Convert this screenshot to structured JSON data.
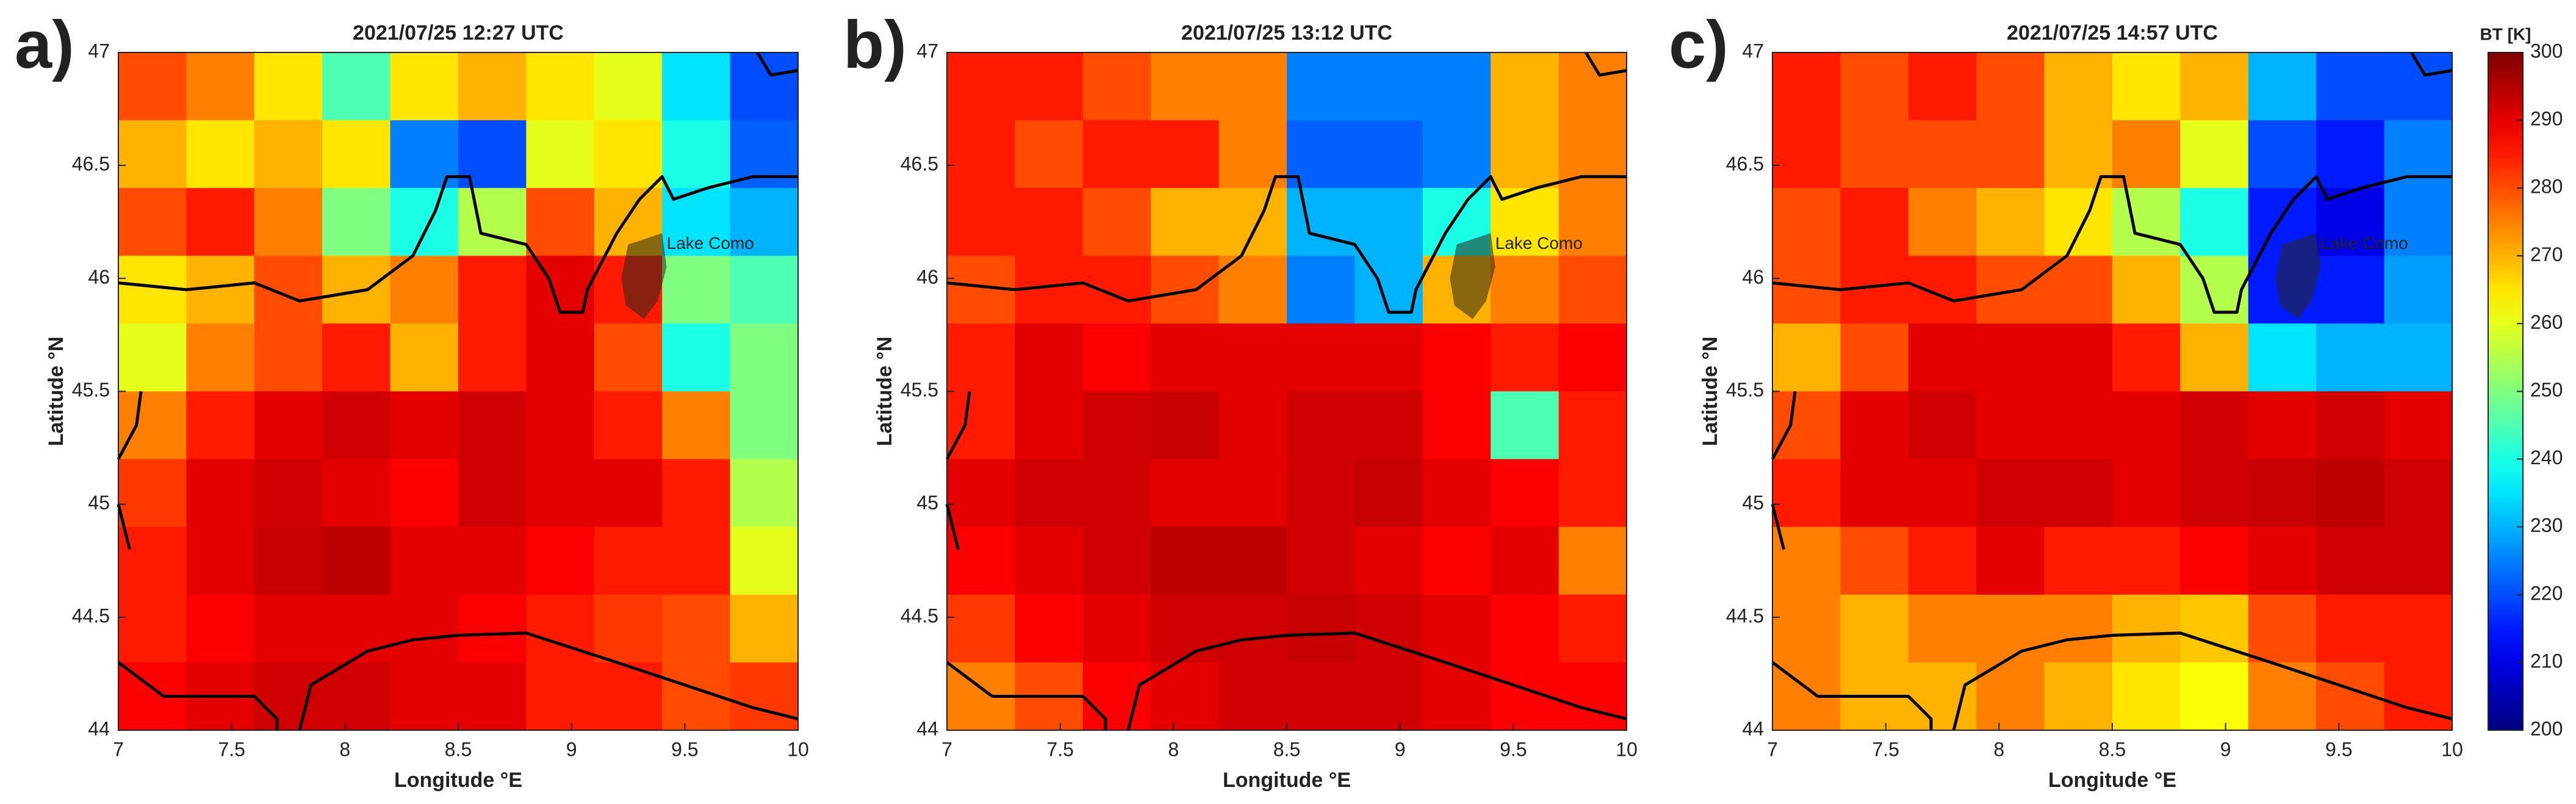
{
  "chart_data": [
    {
      "type": "heatmap",
      "label": "a)",
      "title": "2021/07/25 12:27 UTC",
      "xlabel": "Longitude °E",
      "ylabel": "Latitude °N",
      "xlim": [
        7,
        10
      ],
      "ylim": [
        44,
        47
      ],
      "xticks": [
        7,
        7.5,
        8,
        8.5,
        9,
        9.5,
        10
      ],
      "yticks": [
        44,
        44.5,
        45,
        45.5,
        46,
        46.5,
        47
      ],
      "colormap": "jet",
      "clim": [
        200,
        300
      ],
      "annotations": [
        {
          "text": "Lake Como",
          "x": 9.42,
          "y": 46.15
        }
      ],
      "z": [
        [
          280,
          275,
          265,
          245,
          265,
          270,
          265,
          260,
          235,
          220
        ],
        [
          270,
          265,
          270,
          265,
          225,
          220,
          260,
          265,
          240,
          222
        ],
        [
          280,
          285,
          275,
          250,
          240,
          255,
          280,
          270,
          235,
          230
        ],
        [
          265,
          270,
          280,
          270,
          275,
          285,
          290,
          285,
          250,
          245
        ],
        [
          260,
          275,
          280,
          285,
          270,
          285,
          290,
          280,
          240,
          250
        ],
        [
          275,
          285,
          290,
          292,
          290,
          292,
          290,
          285,
          275,
          250
        ],
        [
          282,
          290,
          292,
          290,
          288,
          292,
          290,
          290,
          285,
          255
        ],
        [
          285,
          290,
          293,
          294,
          290,
          290,
          288,
          285,
          285,
          260
        ],
        [
          285,
          288,
          290,
          290,
          290,
          288,
          285,
          282,
          280,
          270
        ],
        [
          288,
          290,
          292,
          292,
          290,
          290,
          285,
          285,
          280,
          282
        ]
      ]
    },
    {
      "type": "heatmap",
      "label": "b)",
      "title": "2021/07/25 13:12 UTC",
      "xlabel": "Longitude °E",
      "ylabel": "Latitude °N",
      "xlim": [
        7,
        10
      ],
      "ylim": [
        44,
        47
      ],
      "xticks": [
        7,
        7.5,
        8,
        8.5,
        9,
        9.5,
        10
      ],
      "yticks": [
        44,
        44.5,
        45,
        45.5,
        46,
        46.5,
        47
      ],
      "colormap": "jet",
      "clim": [
        200,
        300
      ],
      "annotations": [
        {
          "text": "Lake Como",
          "x": 9.42,
          "y": 46.15
        }
      ],
      "z": [
        [
          285,
          285,
          280,
          275,
          275,
          225,
          225,
          225,
          270,
          275
        ],
        [
          285,
          280,
          285,
          285,
          275,
          222,
          222,
          225,
          270,
          275
        ],
        [
          285,
          285,
          280,
          270,
          270,
          230,
          230,
          240,
          265,
          275
        ],
        [
          280,
          285,
          285,
          280,
          275,
          225,
          230,
          270,
          275,
          280
        ],
        [
          285,
          290,
          288,
          290,
          290,
          290,
          290,
          288,
          285,
          288
        ],
        [
          285,
          290,
          292,
          293,
          290,
          292,
          292,
          288,
          245,
          285
        ],
        [
          290,
          292,
          292,
          290,
          290,
          292,
          293,
          290,
          288,
          285
        ],
        [
          288,
          290,
          292,
          294,
          294,
          292,
          290,
          288,
          290,
          275
        ],
        [
          282,
          288,
          290,
          292,
          292,
          293,
          292,
          290,
          288,
          285
        ],
        [
          275,
          280,
          288,
          290,
          292,
          292,
          292,
          290,
          288,
          288
        ]
      ]
    },
    {
      "type": "heatmap",
      "label": "c)",
      "title": "2021/07/25 14:57 UTC",
      "xlabel": "Longitude °E",
      "ylabel": "Latitude °N",
      "xlim": [
        7,
        10
      ],
      "ylim": [
        44,
        47
      ],
      "xticks": [
        7,
        7.5,
        8,
        8.5,
        9,
        9.5,
        10
      ],
      "yticks": [
        44,
        44.5,
        45,
        45.5,
        46,
        46.5,
        47
      ],
      "colormap": "jet",
      "clim": [
        200,
        300
      ],
      "annotations": [
        {
          "text": "Lake Como",
          "x": 9.42,
          "y": 46.15
        }
      ],
      "colorbar": {
        "label": "BT [K]",
        "ticks": [
          200,
          210,
          220,
          230,
          240,
          250,
          260,
          270,
          280,
          290,
          300
        ]
      },
      "z": [
        [
          285,
          280,
          285,
          280,
          270,
          265,
          270,
          230,
          220,
          220
        ],
        [
          285,
          280,
          280,
          280,
          270,
          275,
          260,
          220,
          215,
          225
        ],
        [
          280,
          285,
          275,
          270,
          265,
          255,
          240,
          215,
          210,
          225
        ],
        [
          280,
          285,
          285,
          280,
          280,
          270,
          255,
          215,
          215,
          228
        ],
        [
          270,
          280,
          290,
          290,
          290,
          285,
          270,
          235,
          230,
          230
        ],
        [
          280,
          290,
          292,
          290,
          290,
          290,
          292,
          290,
          292,
          290
        ],
        [
          285,
          290,
          290,
          292,
          292,
          290,
          292,
          293,
          294,
          292
        ],
        [
          275,
          280,
          285,
          290,
          285,
          285,
          288,
          290,
          292,
          292
        ],
        [
          275,
          270,
          275,
          275,
          275,
          270,
          268,
          280,
          285,
          285
        ],
        [
          275,
          270,
          270,
          275,
          270,
          265,
          262,
          275,
          280,
          285
        ]
      ]
    }
  ]
}
